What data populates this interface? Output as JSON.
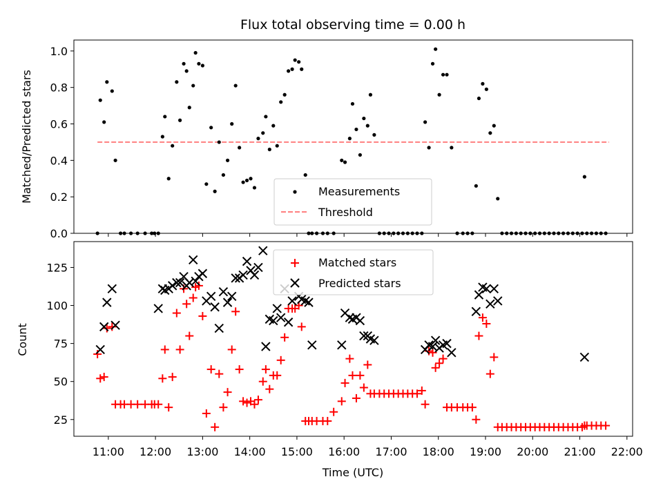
{
  "chart_data": [
    {
      "type": "scatter",
      "title": "Flux total observing time = 0.00 h",
      "ylabel": "Matched/Predicted stars",
      "xlabel": "",
      "ylim": [
        0,
        1.06
      ],
      "yticks": [
        0.0,
        0.2,
        0.4,
        0.6,
        0.8,
        1.0
      ],
      "ytick_labels": [
        "0.0",
        "0.2",
        "0.4",
        "0.6",
        "0.8",
        "1.0"
      ],
      "xlim_hours": [
        10.27,
        22.12
      ],
      "legend": {
        "position": "lower center",
        "entries": [
          "Measurements",
          "Threshold"
        ]
      },
      "colors": {
        "measurements": "#000000",
        "threshold": "#ff7f7f"
      },
      "series": [
        {
          "name": "Measurements",
          "marker": "dot",
          "x": [
            10.77,
            10.83,
            10.91,
            10.97,
            11.08,
            11.15,
            11.26,
            11.34,
            11.48,
            11.62,
            11.78,
            11.92,
            11.98,
            12.06,
            12.15,
            12.2,
            12.28,
            12.36,
            12.45,
            12.52,
            12.6,
            12.66,
            12.72,
            12.8,
            12.85,
            12.92,
            13.0,
            13.08,
            13.18,
            13.26,
            13.35,
            13.44,
            13.53,
            13.62,
            13.7,
            13.78,
            13.86,
            13.94,
            14.02,
            14.1,
            14.18,
            14.28,
            14.34,
            14.42,
            14.5,
            14.58,
            14.66,
            14.74,
            14.82,
            14.9,
            14.96,
            15.04,
            15.1,
            15.18,
            15.25,
            15.32,
            15.42,
            15.55,
            15.65,
            15.78,
            15.95,
            16.02,
            16.12,
            16.18,
            16.26,
            16.34,
            16.42,
            16.5,
            16.56,
            16.64,
            16.75,
            16.85,
            16.95,
            17.05,
            17.15,
            17.25,
            17.35,
            17.45,
            17.55,
            17.65,
            17.72,
            17.8,
            17.88,
            17.94,
            18.02,
            18.1,
            18.18,
            18.28,
            18.4,
            18.52,
            18.62,
            18.72,
            18.8,
            18.86,
            18.94,
            19.02,
            19.1,
            19.18,
            19.26,
            19.35,
            19.45,
            19.55,
            19.65,
            19.75,
            19.85,
            19.95,
            20.05,
            20.15,
            20.25,
            20.35,
            20.45,
            20.55,
            20.65,
            20.75,
            20.85,
            20.95,
            21.05,
            21.1,
            21.15,
            21.25,
            21.35,
            21.45,
            21.55
          ],
          "y": [
            0.0,
            0.73,
            0.61,
            0.83,
            0.78,
            0.4,
            0.0,
            0.0,
            0.0,
            0.0,
            0.0,
            0.0,
            0.0,
            0.0,
            0.53,
            0.64,
            0.3,
            0.48,
            0.83,
            0.62,
            0.93,
            0.89,
            0.69,
            0.81,
            0.99,
            0.93,
            0.92,
            0.27,
            0.58,
            0.23,
            0.5,
            0.32,
            0.4,
            0.6,
            0.81,
            0.47,
            0.28,
            0.29,
            0.3,
            0.25,
            0.52,
            0.55,
            0.64,
            0.46,
            0.59,
            0.48,
            0.72,
            0.76,
            0.89,
            0.9,
            0.95,
            0.94,
            0.9,
            0.32,
            0.0,
            0.0,
            0.0,
            0.0,
            0.0,
            0.0,
            0.4,
            0.39,
            0.52,
            0.71,
            0.57,
            0.43,
            0.63,
            0.59,
            0.76,
            0.54,
            0.0,
            0.0,
            0.0,
            0.0,
            0.0,
            0.0,
            0.0,
            0.0,
            0.0,
            0.0,
            0.61,
            0.47,
            0.93,
            1.01,
            0.76,
            0.87,
            0.87,
            0.47,
            0.0,
            0.0,
            0.0,
            0.0,
            0.26,
            0.74,
            0.82,
            0.79,
            0.55,
            0.59,
            0.19,
            0.0,
            0.0,
            0.0,
            0.0,
            0.0,
            0.0,
            0.0,
            0.0,
            0.0,
            0.0,
            0.0,
            0.0,
            0.0,
            0.0,
            0.0,
            0.0,
            0.0,
            0.0,
            0.31,
            0.0,
            0.0,
            0.0,
            0.0,
            0.0
          ]
        },
        {
          "name": "Threshold",
          "style": "dashed",
          "x": [
            10.77,
            21.62
          ],
          "y": [
            0.5,
            0.5
          ]
        }
      ]
    },
    {
      "type": "scatter",
      "ylabel": "Count",
      "xlabel": "Time (UTC)",
      "ylim": [
        14,
        142
      ],
      "yticks": [
        25,
        50,
        75,
        100,
        125
      ],
      "ytick_labels": [
        "25",
        "50",
        "75",
        "100",
        "125"
      ],
      "xlim_hours": [
        10.27,
        22.12
      ],
      "xticks": [
        11,
        12,
        13,
        14,
        15,
        16,
        17,
        18,
        19,
        20,
        21,
        22
      ],
      "xtick_labels": [
        "11:00",
        "12:00",
        "13:00",
        "14:00",
        "15:00",
        "16:00",
        "17:00",
        "18:00",
        "19:00",
        "20:00",
        "21:00",
        "22:00"
      ],
      "legend": {
        "position": "upper center",
        "entries": [
          "Matched stars",
          "Predicted stars"
        ]
      },
      "colors": {
        "matched": "#ff0000",
        "predicted": "#000000"
      },
      "series": [
        {
          "name": "Matched stars",
          "marker": "plus",
          "x": [
            10.77,
            10.83,
            10.91,
            10.97,
            11.08,
            11.15,
            11.26,
            11.34,
            11.48,
            11.62,
            11.78,
            11.92,
            11.98,
            12.06,
            12.15,
            12.2,
            12.28,
            12.36,
            12.45,
            12.52,
            12.6,
            12.66,
            12.72,
            12.8,
            12.85,
            12.92,
            13.0,
            13.08,
            13.18,
            13.26,
            13.35,
            13.44,
            13.53,
            13.62,
            13.7,
            13.78,
            13.86,
            13.94,
            14.02,
            14.1,
            14.18,
            14.28,
            14.34,
            14.42,
            14.5,
            14.58,
            14.66,
            14.74,
            14.82,
            14.9,
            14.96,
            15.04,
            15.1,
            15.18,
            15.25,
            15.32,
            15.42,
            15.55,
            15.65,
            15.78,
            15.95,
            16.02,
            16.12,
            16.18,
            16.26,
            16.34,
            16.42,
            16.5,
            16.56,
            16.64,
            16.75,
            16.85,
            16.95,
            17.05,
            17.15,
            17.25,
            17.35,
            17.45,
            17.55,
            17.65,
            17.72,
            17.8,
            17.88,
            17.94,
            18.02,
            18.1,
            18.18,
            18.28,
            18.4,
            18.52,
            18.62,
            18.72,
            18.8,
            18.86,
            18.94,
            19.02,
            19.1,
            19.18,
            19.26,
            19.35,
            19.45,
            19.55,
            19.65,
            19.75,
            19.85,
            19.95,
            20.05,
            20.15,
            20.25,
            20.35,
            20.45,
            20.55,
            20.65,
            20.75,
            20.85,
            20.95,
            21.05,
            21.1,
            21.15,
            21.25,
            21.35,
            21.45,
            21.55
          ],
          "y": [
            68,
            52,
            53,
            85,
            86,
            35,
            35,
            35,
            35,
            35,
            35,
            35,
            35,
            35,
            52,
            71,
            33,
            53,
            95,
            71,
            111,
            101,
            80,
            105,
            112,
            113,
            93,
            29,
            58,
            20,
            55,
            33,
            43,
            71,
            96,
            58,
            37,
            36,
            37,
            35,
            38,
            50,
            58,
            45,
            54,
            54,
            64,
            79,
            98,
            98,
            98,
            100,
            86,
            24,
            24,
            24,
            24,
            24,
            24,
            30,
            37,
            49,
            65,
            54,
            39,
            54,
            46,
            61,
            42,
            42,
            42,
            42,
            42,
            42,
            42,
            42,
            42,
            42,
            42,
            44,
            35,
            70,
            69,
            59,
            62,
            65,
            33,
            33,
            33,
            33,
            33,
            33,
            25,
            80,
            92,
            88,
            55,
            66,
            20,
            20,
            20,
            20,
            20,
            20,
            20,
            20,
            20,
            20,
            20,
            20,
            20,
            20,
            20,
            20,
            20,
            20,
            20,
            21,
            21,
            21,
            21,
            21,
            21
          ]
        },
        {
          "name": "Predicted stars",
          "marker": "x",
          "x": [
            10.83,
            10.91,
            10.97,
            11.08,
            11.15,
            12.06,
            12.15,
            12.2,
            12.28,
            12.36,
            12.45,
            12.52,
            12.6,
            12.66,
            12.72,
            12.8,
            12.85,
            12.92,
            13.0,
            13.08,
            13.18,
            13.26,
            13.35,
            13.44,
            13.53,
            13.62,
            13.7,
            13.78,
            13.86,
            13.94,
            14.02,
            14.1,
            14.18,
            14.28,
            14.34,
            14.42,
            14.5,
            14.58,
            14.66,
            14.74,
            14.82,
            14.9,
            14.96,
            15.04,
            15.1,
            15.18,
            15.25,
            15.32,
            15.95,
            16.02,
            16.12,
            16.18,
            16.26,
            16.34,
            16.42,
            16.5,
            16.56,
            16.64,
            17.72,
            17.8,
            17.88,
            17.94,
            18.02,
            18.1,
            18.18,
            18.28,
            18.8,
            18.86,
            18.94,
            19.02,
            19.1,
            19.18,
            19.26,
            21.1
          ],
          "y": [
            71,
            86,
            102,
            111,
            87,
            98,
            111,
            110,
            111,
            113,
            115,
            115,
            119,
            113,
            115,
            130,
            116,
            119,
            121,
            103,
            106,
            99,
            85,
            109,
            102,
            106,
            118,
            118,
            120,
            129,
            123,
            120,
            125,
            136,
            73,
            91,
            90,
            98,
            92,
            111,
            89,
            103,
            115,
            106,
            104,
            103,
            102,
            74,
            74,
            95,
            92,
            91,
            92,
            90,
            80,
            80,
            78,
            77,
            71,
            74,
            73,
            77,
            72,
            74,
            75,
            69,
            96,
            107,
            112,
            111,
            101,
            111,
            103,
            66
          ]
        }
      ]
    }
  ]
}
